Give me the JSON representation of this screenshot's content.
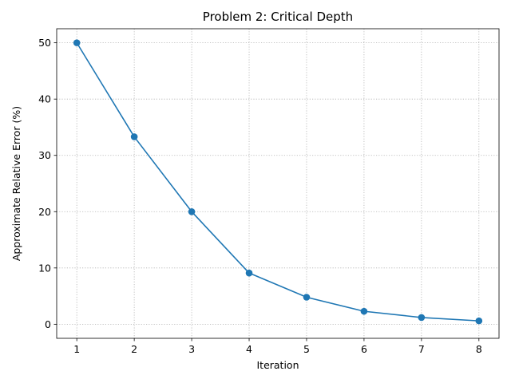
{
  "chart_data": {
    "type": "line",
    "title": "Problem 2: Critical Depth",
    "xlabel": "Iteration",
    "ylabel": "Approximate Relative Error (%)",
    "x": [
      1,
      2,
      3,
      4,
      5,
      6,
      7,
      8
    ],
    "series": [
      {
        "values": [
          50.0,
          33.3,
          20.0,
          9.1,
          4.8,
          2.3,
          1.2,
          0.6
        ],
        "color": "#1f77b4",
        "marker": "circle"
      }
    ],
    "xlim": [
      0.65,
      8.35
    ],
    "ylim": [
      -2.5,
      52.5
    ],
    "xticks": [
      1,
      2,
      3,
      4,
      5,
      6,
      7,
      8
    ],
    "yticks": [
      0,
      10,
      20,
      30,
      40,
      50
    ],
    "grid": true,
    "grid_style": "dotted"
  }
}
